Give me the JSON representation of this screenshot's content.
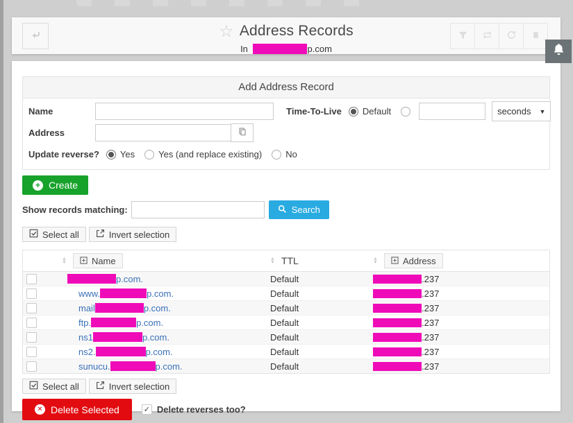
{
  "header": {
    "title": "Address Records",
    "subtitle_prefix": "In",
    "subtitle_suffix": "p.com",
    "subtitle_redact_w": 78,
    "toolbar_icons": [
      "filter",
      "repeat",
      "refresh",
      "stop"
    ],
    "bell": "notifications"
  },
  "form": {
    "title": "Add Address Record",
    "name_label": "Name",
    "name_value": "",
    "ttl_label": "Time-To-Live",
    "ttl_selected": "Default",
    "ttl_default_label": "Default",
    "ttl_value": "",
    "ttl_units_value": "seconds",
    "address_label": "Address",
    "address_value": "",
    "update_reverse_label": "Update reverse?",
    "update_reverse_options": [
      "Yes",
      "Yes (and replace existing)",
      "No"
    ],
    "update_reverse_selected": "Yes"
  },
  "actions": {
    "create": "Create",
    "show_matching": "Show records matching:",
    "search_value": "",
    "search": "Search",
    "select_all": "Select all",
    "invert_selection": "Invert selection",
    "delete_selected": "Delete Selected",
    "delete_reverses": "Delete reverses too?",
    "delete_reverses_checked": true
  },
  "table": {
    "name_header": "Name",
    "ttl_header": "TTL",
    "address_header": "Address",
    "rows": [
      {
        "prefix": "",
        "suffix": "p.com.",
        "name_redact_w": 70,
        "ttl": "Default",
        "addr_redact_w": 70,
        "addr_suffix": ".237",
        "checked": false
      },
      {
        "prefix": "www.",
        "suffix": "p.com.",
        "name_redact_w": 67,
        "ttl": "Default",
        "addr_redact_w": 70,
        "addr_suffix": ".237",
        "checked": false
      },
      {
        "prefix": "mail",
        "suffix": "p.com.",
        "name_redact_w": 70,
        "ttl": "Default",
        "addr_redact_w": 70,
        "addr_suffix": ".237",
        "checked": false
      },
      {
        "prefix": "ftp.",
        "suffix": "p.com.",
        "name_redact_w": 65,
        "ttl": "Default",
        "addr_redact_w": 70,
        "addr_suffix": ".237",
        "checked": false
      },
      {
        "prefix": "ns1",
        "suffix": "p.com.",
        "name_redact_w": 71,
        "ttl": "Default",
        "addr_redact_w": 70,
        "addr_suffix": ".237",
        "checked": false
      },
      {
        "prefix": "ns2.",
        "suffix": "p.com.",
        "name_redact_w": 72,
        "ttl": "Default",
        "addr_redact_w": 70,
        "addr_suffix": ".237",
        "checked": false
      },
      {
        "prefix": "sunucu.",
        "suffix": "p.com.",
        "name_redact_w": 65,
        "ttl": "Default",
        "addr_redact_w": 70,
        "addr_suffix": ".237",
        "checked": false
      }
    ]
  },
  "colors": {
    "accent_green": "#17a22b",
    "accent_blue": "#29abe2",
    "accent_red": "#e20b10",
    "redact_magenta": "#ef0bb8",
    "link_blue": "#3a70b8",
    "bell_tab": "#6c7376"
  }
}
